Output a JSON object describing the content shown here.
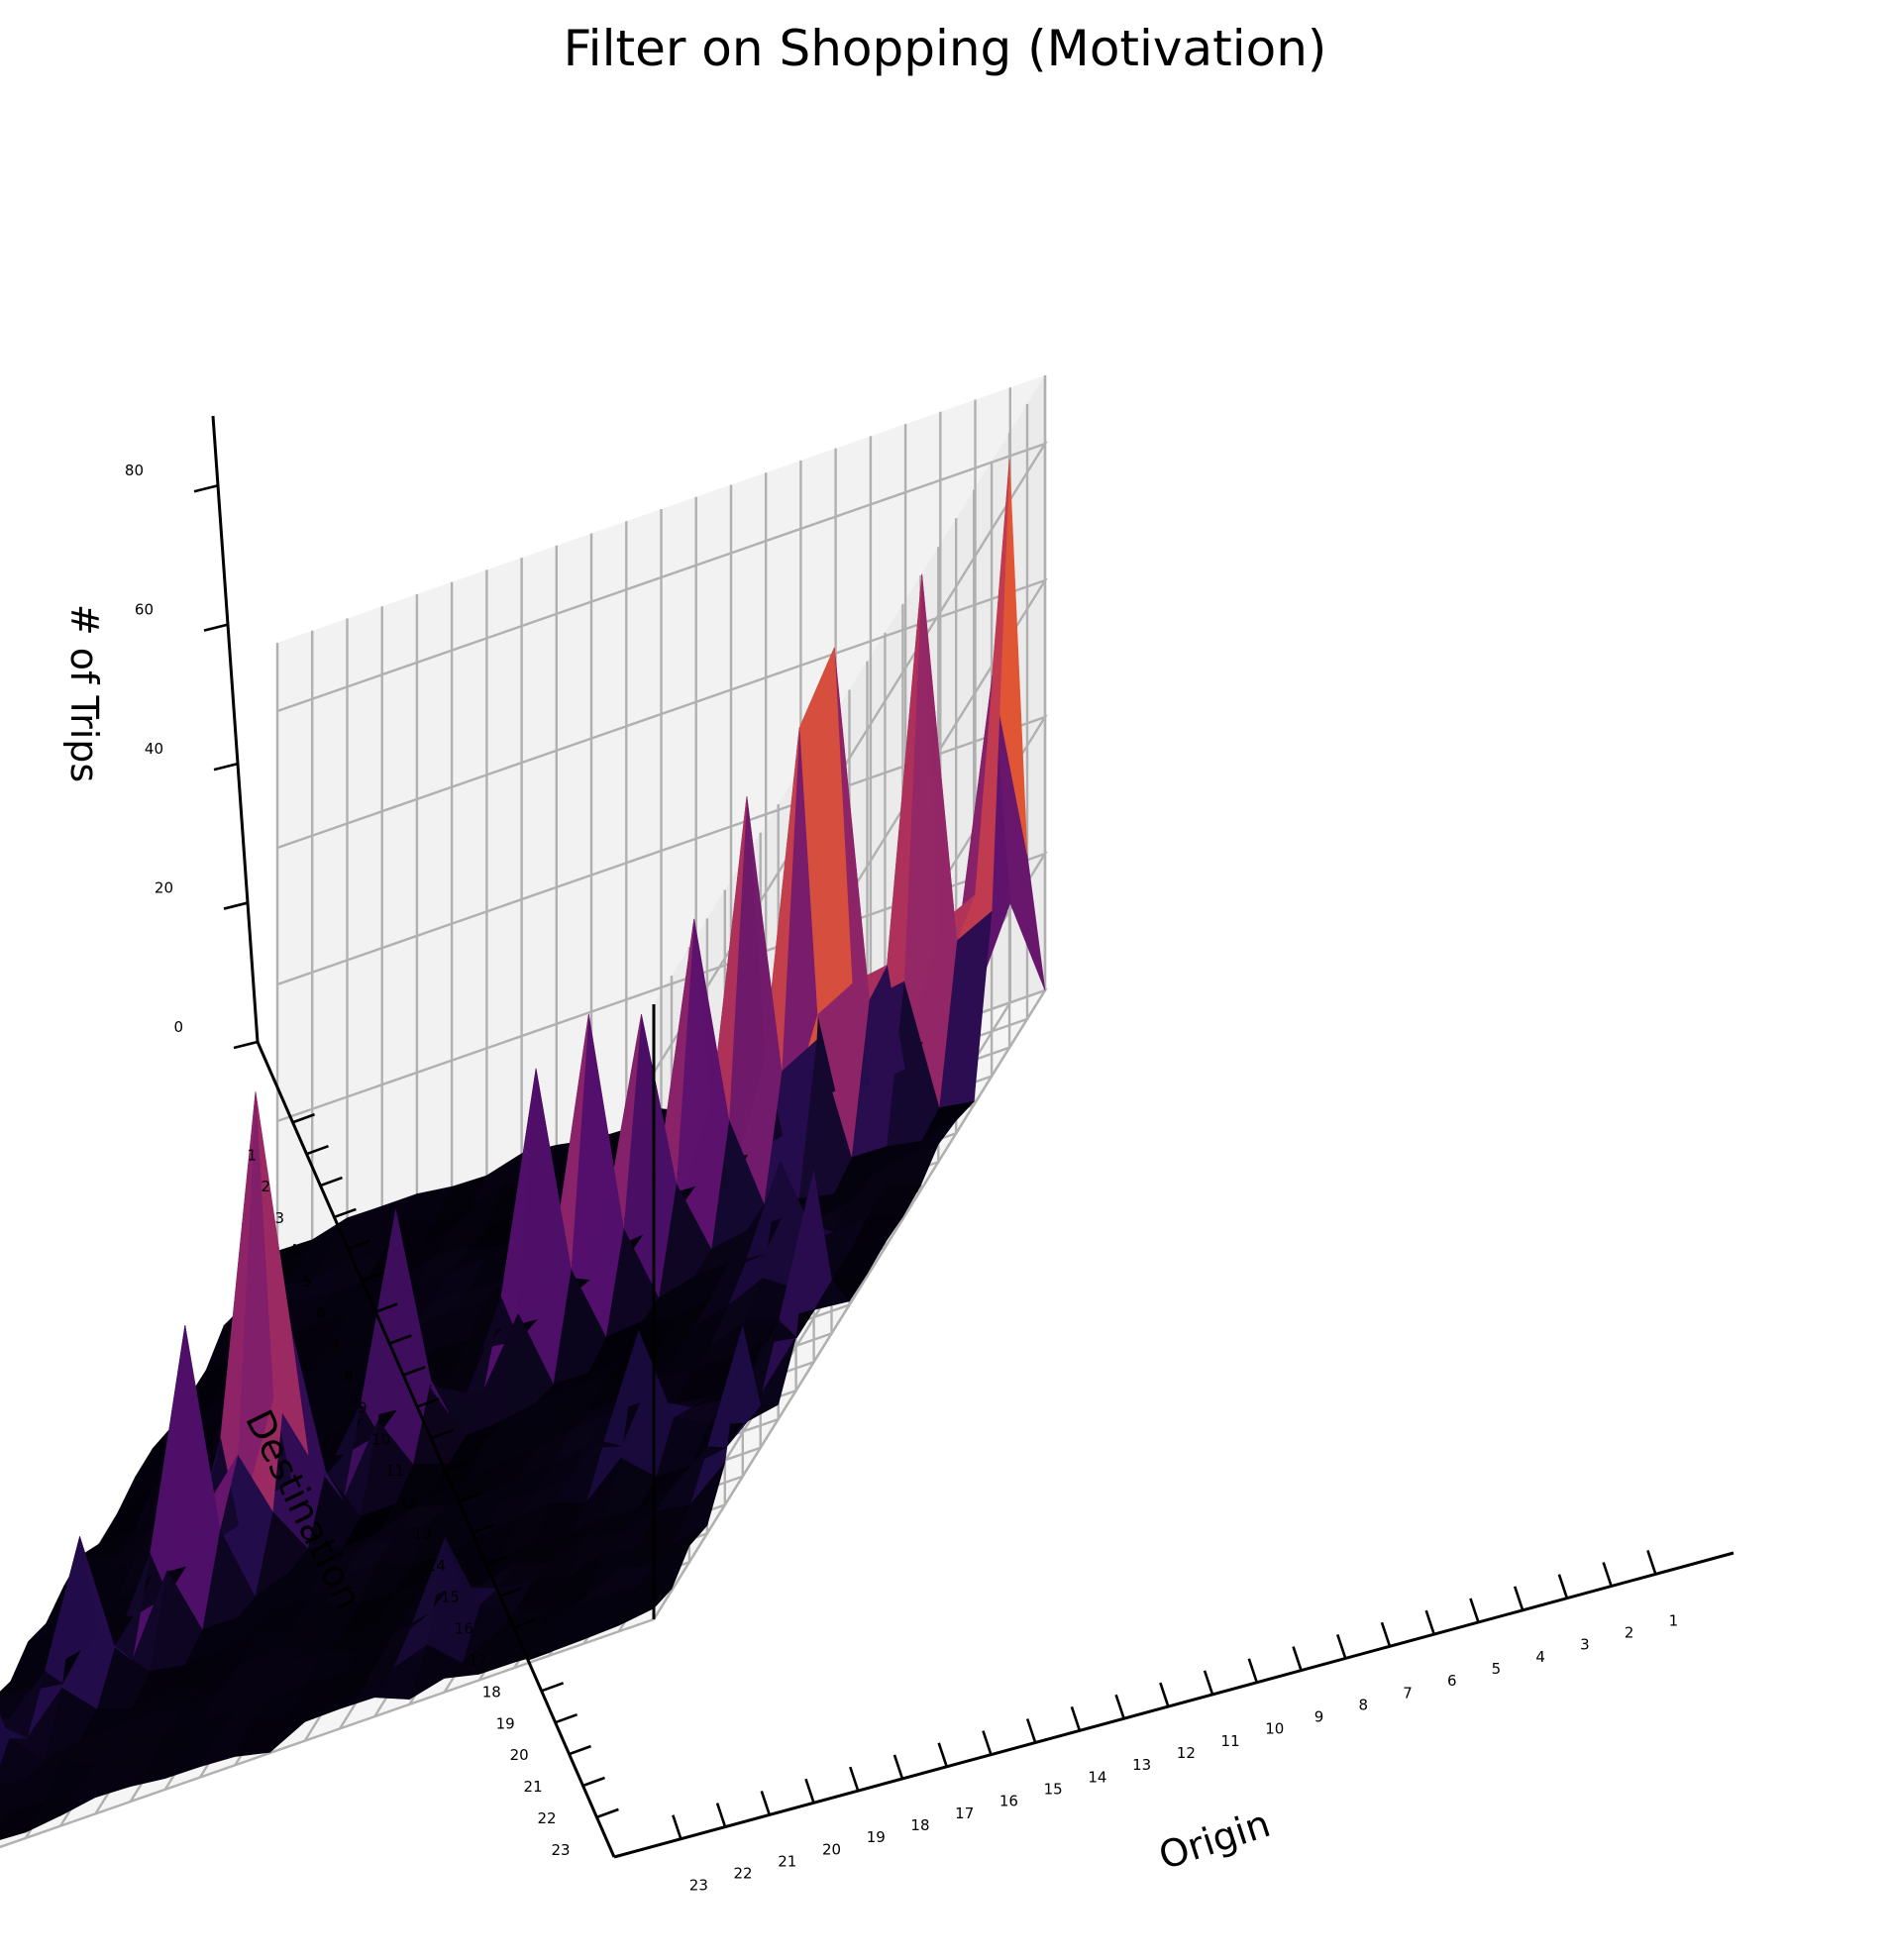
{
  "chart_data": {
    "type": "surface3d",
    "title": "Filter on Shopping (Motivation)",
    "xlabel": "Origin",
    "ylabel": "Destination",
    "zlabel": "# of Trips",
    "colormap": "inferno",
    "x_ticks": [
      "1",
      "2",
      "3",
      "4",
      "5",
      "6",
      "7",
      "8",
      "9",
      "10",
      "11",
      "12",
      "13",
      "14",
      "15",
      "16",
      "17",
      "18",
      "19",
      "20",
      "21",
      "22",
      "23"
    ],
    "y_ticks": [
      "1",
      "2",
      "3",
      "4",
      "5",
      "6",
      "7",
      "8",
      "9",
      "10",
      "11",
      "12",
      "13",
      "14",
      "15",
      "16",
      "17",
      "18",
      "19",
      "20",
      "21",
      "22",
      "23"
    ],
    "z_ticks": [
      "0",
      "20",
      "40",
      "60",
      "80"
    ],
    "zlim": [
      0,
      90
    ],
    "grid": true,
    "peaks": [
      {
        "origin": 1,
        "destination": 3,
        "value": 86
      },
      {
        "origin": 3,
        "destination": 4,
        "value": 77
      },
      {
        "origin": 5,
        "destination": 5,
        "value": 74
      },
      {
        "origin": 6,
        "destination": 5,
        "value": 64
      },
      {
        "origin": 7,
        "destination": 6,
        "value": 60
      },
      {
        "origin": 8,
        "destination": 7,
        "value": 48
      },
      {
        "origin": 10,
        "destination": 9,
        "value": 46
      },
      {
        "origin": 11,
        "destination": 10,
        "value": 44
      },
      {
        "origin": 14,
        "destination": 12,
        "value": 37
      },
      {
        "origin": 16,
        "destination": 14,
        "value": 32
      },
      {
        "origin": 17,
        "destination": 14,
        "value": 68
      },
      {
        "origin": 18,
        "destination": 16,
        "value": 44
      },
      {
        "origin": 20,
        "destination": 18,
        "value": 25
      },
      {
        "origin": 22,
        "destination": 20,
        "value": 20
      },
      {
        "origin": 9,
        "destination": 8,
        "value": 40
      },
      {
        "origin": 2,
        "destination": 2,
        "value": 52
      },
      {
        "origin": 1,
        "destination": 14,
        "value": 28
      },
      {
        "origin": 1,
        "destination": 18,
        "value": 22
      },
      {
        "origin": 5,
        "destination": 16,
        "value": 20
      },
      {
        "origin": 8,
        "destination": 21,
        "value": 16
      },
      {
        "origin": 4,
        "destination": 10,
        "value": 18
      }
    ]
  }
}
